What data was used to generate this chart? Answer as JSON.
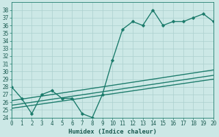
{
  "background_color": "#cce8e6",
  "grid_color": "#aacfcd",
  "line_color": "#1a7a6a",
  "xlabel": "Humidex (Indice chaleur)",
  "xlim": [
    0,
    20
  ],
  "ylim": [
    24,
    39
  ],
  "yticks": [
    24,
    25,
    26,
    27,
    28,
    29,
    30,
    31,
    32,
    33,
    34,
    35,
    36,
    37,
    38
  ],
  "xticks": [
    0,
    1,
    2,
    3,
    4,
    5,
    6,
    7,
    8,
    9,
    10,
    11,
    12,
    13,
    14,
    15,
    16,
    17,
    18,
    19,
    20
  ],
  "line1_x": [
    0,
    20
  ],
  "line1_y": [
    25.2,
    29.0
  ],
  "line2_x": [
    0,
    20
  ],
  "line2_y": [
    25.6,
    29.5
  ],
  "line3_x": [
    0,
    20
  ],
  "line3_y": [
    26.2,
    30.2
  ],
  "main_x": [
    0,
    1,
    2,
    3,
    4,
    5,
    6,
    7,
    8,
    9,
    10,
    11,
    12,
    13,
    14,
    15,
    16,
    17,
    18,
    19,
    20
  ],
  "main_y": [
    28.0,
    26.5,
    24.5,
    27.0,
    27.5,
    26.5,
    26.5,
    24.5,
    24.0,
    27.0,
    31.5,
    35.5,
    36.5,
    36.0,
    38.0,
    36.0,
    36.5,
    36.5,
    37.0,
    37.5,
    36.5
  ],
  "linewidth": 1.0,
  "markersize": 2.5,
  "tick_fontsize": 5.5,
  "xlabel_fontsize": 6.5
}
